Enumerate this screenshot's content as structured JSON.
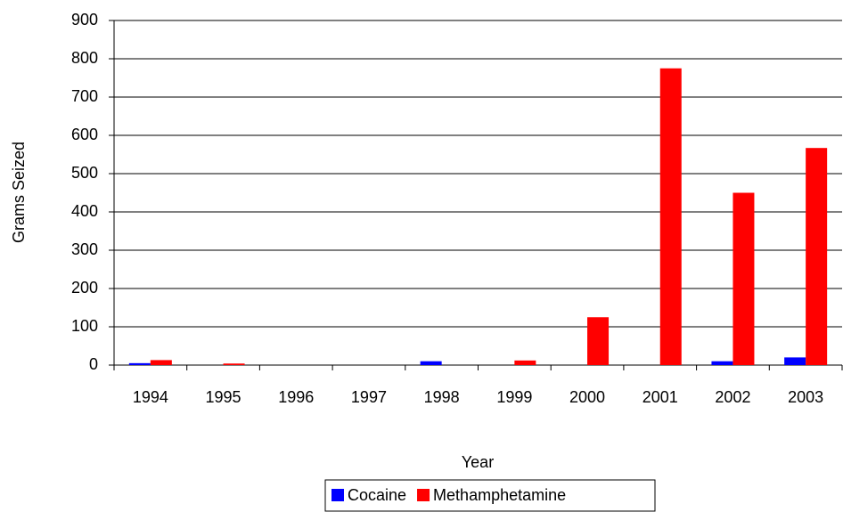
{
  "chart_data": {
    "type": "bar",
    "x_label": "Year",
    "y_label": "Grams Seized",
    "categories": [
      "1994",
      "1995",
      "1996",
      "1997",
      "1998",
      "1999",
      "2000",
      "2001",
      "2002",
      "2003"
    ],
    "series": [
      {
        "name": "Cocaine",
        "color": "#0000ff",
        "values": [
          5,
          0,
          0,
          0,
          10,
          0,
          0,
          0,
          10,
          20
        ]
      },
      {
        "name": "Methamphetamine",
        "color": "#ff0000",
        "values": [
          13,
          4,
          0,
          0,
          0,
          12,
          125,
          775,
          450,
          567
        ]
      }
    ],
    "ylim": [
      0,
      900
    ],
    "yticks": [
      0,
      100,
      200,
      300,
      400,
      500,
      600,
      700,
      800,
      900
    ],
    "grid": true,
    "legend": "bottom"
  }
}
